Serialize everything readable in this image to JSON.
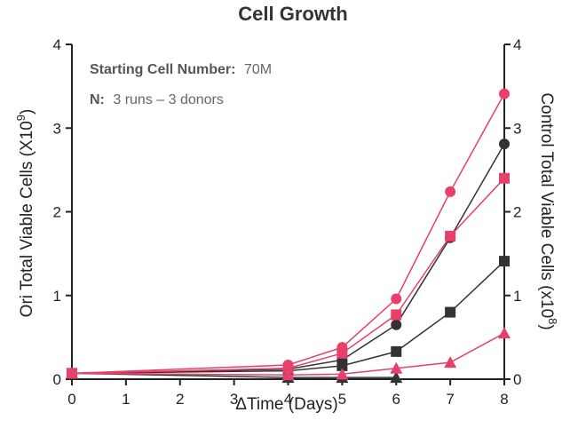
{
  "chart_data": {
    "type": "line",
    "title": "Cell Growth",
    "xlabel": "ΔTime (Days)",
    "ylabel_left_main": "Ori Total Viable Cells (X10",
    "ylabel_left_sup": "9",
    "ylabel_left_end": ")",
    "ylabel_right_main": "Control Total Viable Cells (x10",
    "ylabel_right_sup": "8",
    "ylabel_right_end": ")",
    "xlim": [
      0,
      8
    ],
    "ylim_left": [
      0,
      4
    ],
    "ylim_right": [
      0,
      4
    ],
    "x_ticks": [
      "0",
      "1",
      "2",
      "3",
      "4",
      "5",
      "6",
      "7",
      "8"
    ],
    "y_ticks_left": [
      "0",
      "1",
      "2",
      "3",
      "4"
    ],
    "y_ticks_right": [
      "0",
      "1",
      "2",
      "3",
      "4"
    ],
    "grid": false,
    "annotations": {
      "starting_label": "Starting Cell Number:",
      "starting_value": "70M",
      "n_label": "N:",
      "n_value": "3 runs – 3 donors"
    },
    "colors": {
      "ori": "#e8406a",
      "control": "#333333"
    },
    "series": [
      {
        "group": "ori",
        "marker": "circle",
        "x": [
          0,
          4,
          5,
          6,
          7,
          8
        ],
        "y": [
          0.07,
          0.17,
          0.38,
          0.96,
          2.24,
          3.41
        ]
      },
      {
        "group": "ori",
        "marker": "square",
        "x": [
          0,
          4,
          5,
          6,
          7,
          8
        ],
        "y": [
          0.07,
          0.13,
          0.31,
          0.77,
          1.71,
          2.4
        ]
      },
      {
        "group": "ori",
        "marker": "triangle",
        "x": [
          0,
          4,
          5,
          6,
          7,
          8
        ],
        "y": [
          0.07,
          0.05,
          0.06,
          0.13,
          0.2,
          0.55
        ]
      },
      {
        "group": "control",
        "marker": "circle",
        "x": [
          0,
          4,
          5,
          6,
          7,
          8
        ],
        "y": [
          0.07,
          0.12,
          0.23,
          0.65,
          1.69,
          2.81
        ]
      },
      {
        "group": "control",
        "marker": "square",
        "x": [
          0,
          4,
          5,
          6,
          7,
          8
        ],
        "y": [
          0.07,
          0.1,
          0.16,
          0.33,
          0.8,
          1.41
        ]
      },
      {
        "group": "control",
        "marker": "triangle",
        "x": [
          0,
          4,
          5,
          6
        ],
        "y": [
          0.07,
          0.02,
          0.02,
          0.02
        ]
      }
    ]
  }
}
